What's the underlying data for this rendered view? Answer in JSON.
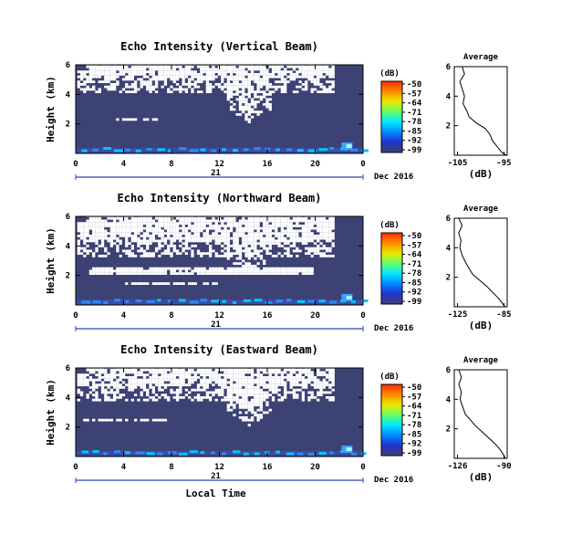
{
  "chart_data": [
    {
      "type": "heatmap",
      "title": "Echo Intensity (Vertical Beam)",
      "ylabel": "Height (km)",
      "xlim": [
        0,
        24
      ],
      "ylim": [
        0,
        6
      ],
      "xticks": [
        "0",
        "4",
        "8",
        "12",
        "16",
        "20",
        "0"
      ],
      "yticks": [
        "6",
        "4",
        "2"
      ],
      "date_day": "21",
      "date_month_year": "Dec 2016",
      "colorbar": {
        "unit": "(dB)",
        "ticks": [
          "-50",
          "-57",
          "-64",
          "-71",
          "-78",
          "-85",
          "-92",
          "-99"
        ]
      },
      "profile": {
        "title": "Average",
        "xlabel": "(dB)",
        "xticks": [
          "-105",
          "-95"
        ],
        "yticks": [
          "6",
          "4",
          "2"
        ],
        "height_km": [
          6.0,
          5.5,
          5.0,
          4.5,
          4.0,
          3.5,
          3.0,
          2.6,
          2.2,
          1.8,
          1.4,
          1.0,
          0.6,
          0.2,
          0.0
        ],
        "db": [
          -104.0,
          -103.5,
          -104.5,
          -104.0,
          -103.5,
          -103.8,
          -103.0,
          -102.5,
          -101.0,
          -99.0,
          -98.0,
          -97.5,
          -96.5,
          -95.5,
          -94.5
        ]
      }
    },
    {
      "type": "heatmap",
      "title": "Echo Intensity (Northward Beam)",
      "ylabel": "Height (km)",
      "xlim": [
        0,
        24
      ],
      "ylim": [
        0,
        6
      ],
      "xticks": [
        "0",
        "4",
        "8",
        "12",
        "16",
        "20",
        "0"
      ],
      "yticks": [
        "6",
        "4",
        "2"
      ],
      "date_day": "21",
      "date_month_year": "Dec 2016",
      "colorbar": {
        "unit": "(dB)",
        "ticks": [
          "-50",
          "-57",
          "-64",
          "-71",
          "-78",
          "-85",
          "-92",
          "-99"
        ]
      },
      "profile": {
        "title": "Average",
        "xlabel": "(dB)",
        "xticks": [
          "-125",
          "-85"
        ],
        "yticks": [
          "6",
          "4",
          "2"
        ],
        "height_km": [
          6.0,
          5.5,
          5.0,
          4.5,
          4.0,
          3.5,
          3.0,
          2.6,
          2.2,
          1.8,
          1.4,
          1.0,
          0.6,
          0.2,
          0.0
        ],
        "db": [
          -124.0,
          -121.0,
          -124.0,
          -122.0,
          -123.0,
          -121.0,
          -118.0,
          -115.0,
          -112.0,
          -106.0,
          -100.0,
          -95.0,
          -90.0,
          -86.0,
          -84.0
        ]
      }
    },
    {
      "type": "heatmap",
      "title": "Echo Intensity (Eastward Beam)",
      "ylabel": "Height (km)",
      "xlabel": "Local Time",
      "xlim": [
        0,
        24
      ],
      "ylim": [
        0,
        6
      ],
      "xticks": [
        "0",
        "4",
        "8",
        "12",
        "16",
        "20",
        "0"
      ],
      "yticks": [
        "6",
        "4",
        "2"
      ],
      "date_day": "21",
      "date_month_year": "Dec 2016",
      "colorbar": {
        "unit": "(dB)",
        "ticks": [
          "-50",
          "-57",
          "-64",
          "-71",
          "-78",
          "-85",
          "-92",
          "-99"
        ]
      },
      "profile": {
        "title": "Average",
        "xlabel": "(dB)",
        "xticks": [
          "-126",
          "-90"
        ],
        "yticks": [
          "6",
          "4",
          "2"
        ],
        "height_km": [
          6.0,
          5.5,
          5.0,
          4.5,
          4.0,
          3.5,
          3.0,
          2.6,
          2.2,
          1.8,
          1.4,
          1.0,
          0.6,
          0.2,
          0.0
        ],
        "db": [
          -125.0,
          -123.0,
          -125.0,
          -123.0,
          -124.0,
          -122.0,
          -120.0,
          -116.0,
          -112.0,
          -107.0,
          -102.0,
          -97.0,
          -93.0,
          -90.0,
          -89.0
        ]
      }
    }
  ],
  "colors": {
    "background_echo": "#3d4275",
    "no_data": "#ffffff",
    "colorbar_stops": [
      "#ff2a00",
      "#ff8a00",
      "#e8e800",
      "#66ff66",
      "#00e8ff",
      "#0088ff",
      "#2233cc",
      "#3d4275"
    ]
  }
}
